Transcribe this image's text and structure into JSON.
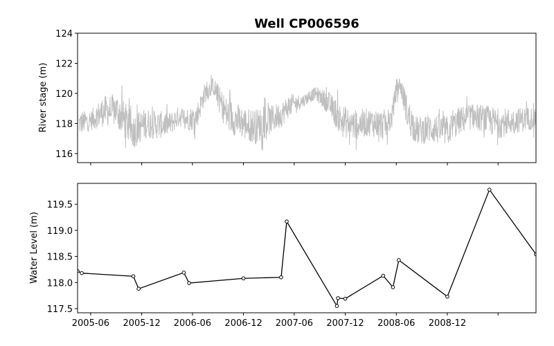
{
  "chart_data": [
    {
      "type": "line",
      "title": "Well CP006596",
      "ylabel": "River stage (m)",
      "ylim": [
        115.4,
        124.0
      ],
      "yticks": [
        116,
        118,
        120,
        122,
        124
      ],
      "xlim": [
        "2005-04-15",
        "2009-10-15"
      ],
      "grid": false,
      "series": [
        {
          "name": "",
          "color": "#bfbfbf",
          "x": [
            "2005-04-20",
            "2005-06-01",
            "2005-07-15",
            "2005-09-01",
            "2005-10-01",
            "2005-11-01",
            "2005-12-15",
            "2006-02-01",
            "2006-03-15",
            "2006-04-15",
            "2006-05-15",
            "2006-06-15",
            "2006-07-15",
            "2006-08-15",
            "2006-10-01",
            "2006-12-01",
            "2007-01-15",
            "2007-03-15",
            "2007-04-15",
            "2007-05-15",
            "2007-07-01",
            "2007-08-15",
            "2007-10-01",
            "2007-11-15",
            "2008-01-01",
            "2008-03-01",
            "2008-04-15",
            "2008-05-01",
            "2008-05-15",
            "2008-06-01",
            "2008-06-15",
            "2008-07-15",
            "2008-08-15",
            "2008-10-01",
            "2008-12-01",
            "2009-01-15",
            "2009-03-01",
            "2009-04-15",
            "2009-06-01",
            "2009-08-01",
            "2009-10-15"
          ],
          "y_mid": [
            118.0,
            118.2,
            118.8,
            118.9,
            118.2,
            117.5,
            118.0,
            117.9,
            118.0,
            118.5,
            118.3,
            118.4,
            120.0,
            120.5,
            118.6,
            118.0,
            117.8,
            118.3,
            118.6,
            119.2,
            119.5,
            120.0,
            119.4,
            118.2,
            117.9,
            118.1,
            117.9,
            118.1,
            118.3,
            120.3,
            120.6,
            118.4,
            117.5,
            117.7,
            117.5,
            118.2,
            118.5,
            118.3,
            118.0,
            118.2,
            118.4
          ],
          "y_amp": [
            1.0,
            0.8,
            1.2,
            1.3,
            1.5,
            1.4,
            1.2,
            1.1,
            0.9,
            0.8,
            0.9,
            1.0,
            0.8,
            0.7,
            1.4,
            1.3,
            1.4,
            1.1,
            1.0,
            0.9,
            0.5,
            0.5,
            0.9,
            1.3,
            1.2,
            1.1,
            1.2,
            1.1,
            0.9,
            0.8,
            0.7,
            1.4,
            1.1,
            1.2,
            1.2,
            1.1,
            1.0,
            1.1,
            1.2,
            1.0,
            0.9
          ]
        }
      ]
    },
    {
      "type": "line",
      "title": "",
      "ylabel": "Water Level (m)",
      "xlabel": "",
      "ylim": [
        117.42,
        119.9
      ],
      "yticks": [
        117.5,
        118.0,
        118.5,
        119.0,
        119.5
      ],
      "ytick_labels": [
        "117.5",
        "118.0",
        "118.5",
        "119.0",
        "119.5"
      ],
      "xlim": [
        "2005-04-15",
        "2009-10-15"
      ],
      "xticks": [
        "2005-06-01",
        "2005-12-01",
        "2006-06-01",
        "2006-12-01",
        "2007-06-01",
        "2007-12-01",
        "2008-06-01",
        "2008-12-01",
        "2009-06-01"
      ],
      "xtick_labels": [
        "2005-06",
        "2005-12",
        "2006-06",
        "2006-12",
        "2007-06",
        "2007-12",
        "2008-06",
        "2008-12",
        ""
      ],
      "grid": false,
      "series": [
        {
          "name": "",
          "color": "#000000",
          "marker": "circle",
          "x": [
            "2005-04-15",
            "2005-04-30",
            "2005-11-01",
            "2005-11-20",
            "2006-05-01",
            "2006-05-20",
            "2006-12-01",
            "2007-04-15",
            "2007-05-05",
            "2007-11-01",
            "2007-11-05",
            "2007-12-01",
            "2008-04-15",
            "2008-05-20",
            "2008-06-10",
            "2008-12-01",
            "2009-05-01",
            "2009-10-15"
          ],
          "y": [
            118.22,
            118.18,
            118.12,
            117.88,
            118.19,
            117.99,
            118.08,
            118.1,
            119.17,
            117.55,
            117.7,
            117.69,
            118.13,
            117.91,
            118.43,
            117.73,
            119.78,
            118.54
          ]
        }
      ]
    }
  ]
}
